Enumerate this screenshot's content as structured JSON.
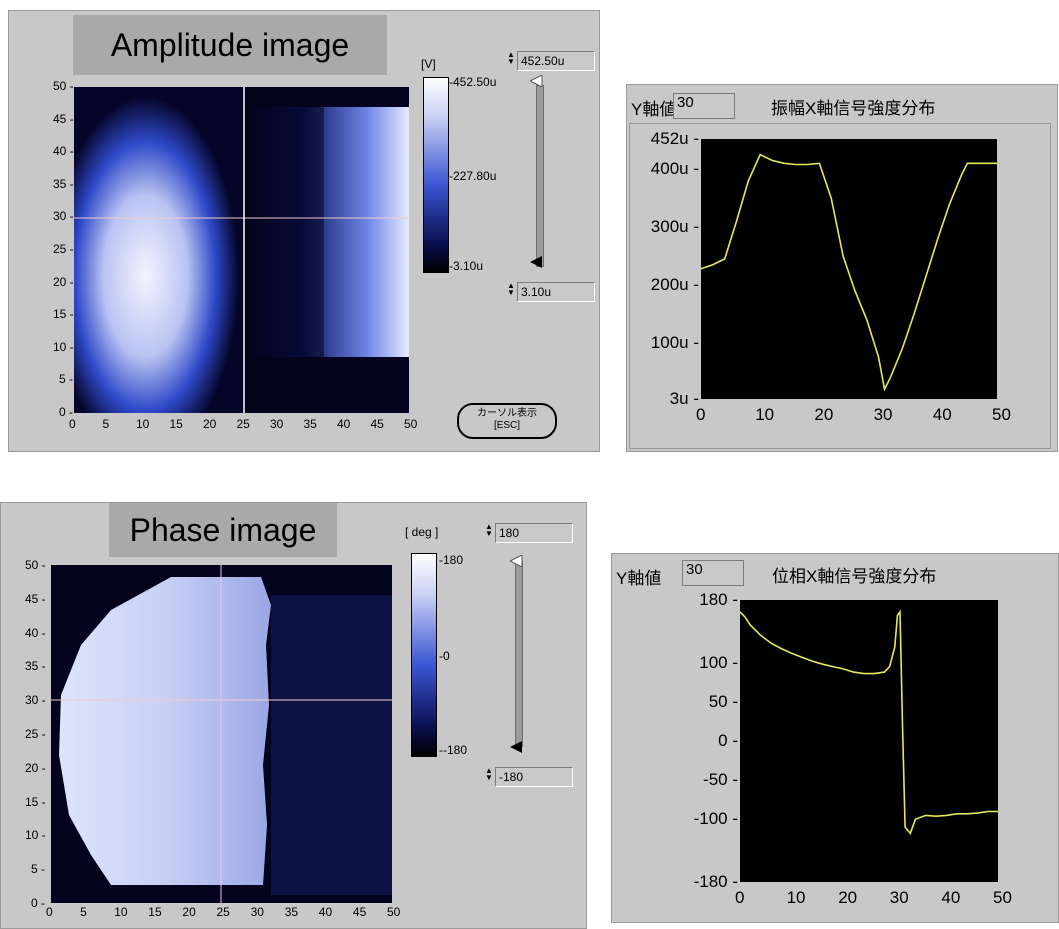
{
  "amplitude": {
    "title": "Amplitude image",
    "unit": "[V]",
    "scale_labels": {
      "max": "-452.50u",
      "mid": "-227.80u",
      "min": "-3.10u"
    },
    "upper_value": "452.50u",
    "lower_value": "3.10u",
    "x_ticks": [
      "0",
      "5",
      "10",
      "15",
      "20",
      "25",
      "30",
      "35",
      "40",
      "45",
      "50"
    ],
    "y_ticks": [
      "50",
      "45",
      "40",
      "35",
      "30",
      "25",
      "20",
      "15",
      "10",
      "5",
      "0"
    ],
    "cursor_button": {
      "line1": "カーソル表示",
      "line2": "[ESC]"
    }
  },
  "phase": {
    "title": "Phase image",
    "unit": "[ deg ]",
    "scale_labels": {
      "max": "-180",
      "mid": "-0",
      "min": "--180"
    },
    "upper_value": "180",
    "lower_value": "-180",
    "x_ticks": [
      "0",
      "5",
      "10",
      "15",
      "20",
      "25",
      "30",
      "35",
      "40",
      "45",
      "50"
    ],
    "y_ticks": [
      "50",
      "45",
      "40",
      "35",
      "30",
      "25",
      "20",
      "15",
      "10",
      "5",
      "0"
    ]
  },
  "amp_profile": {
    "y_axis_label": "Y軸値",
    "y_value": "30",
    "title": "振幅X軸信号強度分布",
    "y_ticks": [
      "452u",
      "400u",
      "300u",
      "200u",
      "100u",
      "3u"
    ],
    "x_ticks": [
      "0",
      "10",
      "20",
      "30",
      "40",
      "50"
    ]
  },
  "phase_profile": {
    "y_axis_label": "Y軸値",
    "y_value": "30",
    "title": "位相X軸信号強度分布",
    "y_ticks": [
      "180",
      "100",
      "50",
      "0",
      "-50",
      "-100",
      "-180"
    ],
    "x_ticks": [
      "0",
      "10",
      "20",
      "30",
      "40",
      "50"
    ]
  },
  "chart_data": [
    {
      "type": "line",
      "name": "amplitude-profile",
      "x": [
        0,
        2,
        4,
        6,
        8,
        10,
        12,
        14,
        16,
        18,
        20,
        22,
        24,
        26,
        28,
        30,
        31,
        32,
        34,
        36,
        38,
        40,
        42,
        44,
        45,
        46,
        48,
        50
      ],
      "y": [
        228,
        235,
        245,
        310,
        380,
        425,
        415,
        410,
        408,
        408,
        410,
        350,
        250,
        190,
        140,
        75,
        20,
        40,
        90,
        150,
        215,
        280,
        340,
        390,
        410,
        410,
        410,
        410
      ],
      "ylim": [
        3,
        452
      ],
      "xlim": [
        0,
        50
      ],
      "ylabel": "",
      "xlabel": ""
    },
    {
      "type": "line",
      "name": "phase-profile",
      "x": [
        0,
        1,
        2,
        4,
        6,
        8,
        10,
        12,
        14,
        16,
        18,
        20,
        22,
        24,
        26,
        28,
        29,
        30,
        30.5,
        31,
        31.5,
        32,
        33,
        34,
        36,
        38,
        40,
        42,
        44,
        46,
        48,
        50
      ],
      "y": [
        165,
        158,
        148,
        135,
        125,
        118,
        112,
        107,
        102,
        98,
        95,
        92,
        88,
        86,
        86,
        88,
        95,
        120,
        160,
        165,
        20,
        -110,
        -118,
        -100,
        -95,
        -96,
        -95,
        -93,
        -93,
        -92,
        -90,
        -90
      ],
      "ylim": [
        -180,
        180
      ],
      "xlim": [
        0,
        50
      ],
      "ylabel": "",
      "xlabel": ""
    }
  ],
  "colors": {
    "panel": "#c8c8c8",
    "trace": "#e6e85a",
    "title_plate": "#a9a9a9"
  }
}
